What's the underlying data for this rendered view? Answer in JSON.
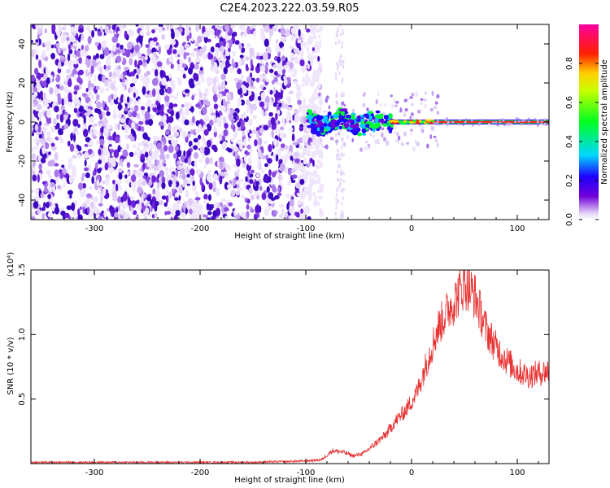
{
  "figure": {
    "title": "C2E4.2023.222.03.59.R05"
  },
  "chart_data": [
    {
      "type": "heatmap",
      "xlabel": "Height of straight line (km)",
      "ylabel": "Frequency (Hz)",
      "xlim": [
        -360,
        130
      ],
      "ylim": [
        -50,
        50
      ],
      "xticks": [
        -300,
        -200,
        -100,
        0,
        100
      ],
      "yticks": [
        -40,
        -20,
        0,
        20,
        40
      ],
      "colorbar": {
        "label": "Normalized spectral amplitude",
        "range": [
          0.0,
          1.0
        ],
        "ticks": [
          "0.0",
          "0.2",
          "0.4",
          "0.6",
          "0.8"
        ],
        "colormap": "rainbow (white-violet-blue-cyan-green-yellow-red-magenta)"
      },
      "features": {
        "noise_region_x": [
          -360,
          -95
        ],
        "signal_trace_frequency_hz": 0,
        "signal_trace_x": [
          -100,
          130
        ],
        "high_amplitude_x": [
          20,
          130
        ]
      }
    },
    {
      "type": "line",
      "xlabel": "Height of straight line (km)",
      "ylabel": "SNR (10 * v/v)",
      "multiplier_label": "(x10⁴)",
      "xlim": [
        -360,
        130
      ],
      "ylim": [
        0,
        1.5
      ],
      "xticks": [
        -300,
        -200,
        -100,
        0,
        100
      ],
      "yticks": [
        0.5,
        1.0,
        1.5
      ],
      "ytick_labels": [
        "0.5",
        "1.0",
        "1.5"
      ],
      "line_color": "#e83232",
      "series": [
        {
          "x": [
            -360,
            -300,
            -200,
            -150,
            -100,
            -85,
            -75,
            -65,
            -55,
            -45,
            -35,
            -25,
            -15,
            -5,
            5,
            15,
            25,
            35,
            40,
            50,
            60,
            70,
            80,
            90,
            100,
            110,
            120,
            130
          ],
          "values": [
            0.01,
            0.01,
            0.01,
            0.01,
            0.02,
            0.03,
            0.1,
            0.09,
            0.06,
            0.08,
            0.15,
            0.22,
            0.33,
            0.42,
            0.55,
            0.8,
            1.05,
            1.2,
            1.25,
            1.4,
            1.3,
            1.05,
            0.9,
            0.8,
            0.72,
            0.68,
            0.7,
            0.72
          ]
        }
      ]
    }
  ]
}
